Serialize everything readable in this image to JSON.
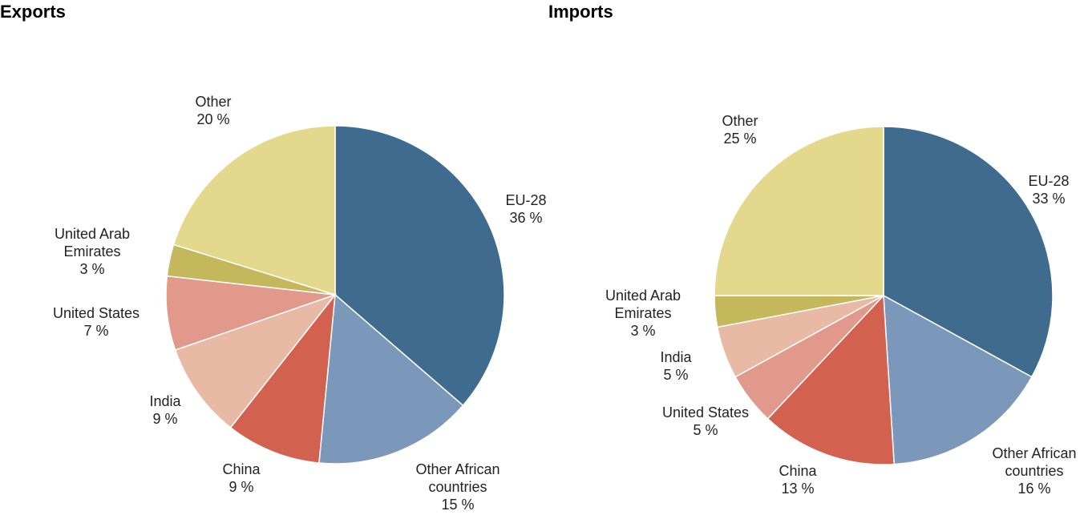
{
  "chart_data": [
    {
      "type": "pie",
      "title": "Exports",
      "categories": [
        "EU-28",
        "Other African countries",
        "China",
        "India",
        "United States",
        "United Arab Emirates",
        "Other"
      ],
      "values": [
        36,
        15,
        9,
        9,
        7,
        3,
        20
      ],
      "label_lines": [
        [
          "EU-28",
          "36 %"
        ],
        [
          "Other African",
          "countries",
          "15 %"
        ],
        [
          "China",
          "9 %"
        ],
        [
          "India",
          "9 %"
        ],
        [
          "United States",
          "7 %"
        ],
        [
          "United Arab",
          "Emirates",
          "3 %"
        ],
        [
          "Other",
          "20 %"
        ]
      ],
      "unit": "%"
    },
    {
      "type": "pie",
      "title": "Imports",
      "categories": [
        "EU-28",
        "Other African countries",
        "China",
        "United States",
        "India",
        "United Arab Emirates",
        "Other"
      ],
      "values": [
        33,
        16,
        13,
        5,
        5,
        3,
        25
      ],
      "label_lines": [
        [
          "EU-28",
          "33 %"
        ],
        [
          "Other African",
          "countries",
          "16 %"
        ],
        [
          "China",
          "13 %"
        ],
        [
          "United States",
          "5 %"
        ],
        [
          "India",
          "5 %"
        ],
        [
          "United Arab",
          "Emirates",
          "3 %"
        ],
        [
          "Other",
          "25 %"
        ]
      ],
      "unit": "%"
    }
  ],
  "colors": {
    "EU-28": "#3f6b8f",
    "Other African countries": "#7b98bb",
    "China": "#d2624f",
    "India": "#e8baa6",
    "United States": "#e0998a",
    "United Arab Emirates": "#c5b75c",
    "Other": "#e3d88c"
  }
}
